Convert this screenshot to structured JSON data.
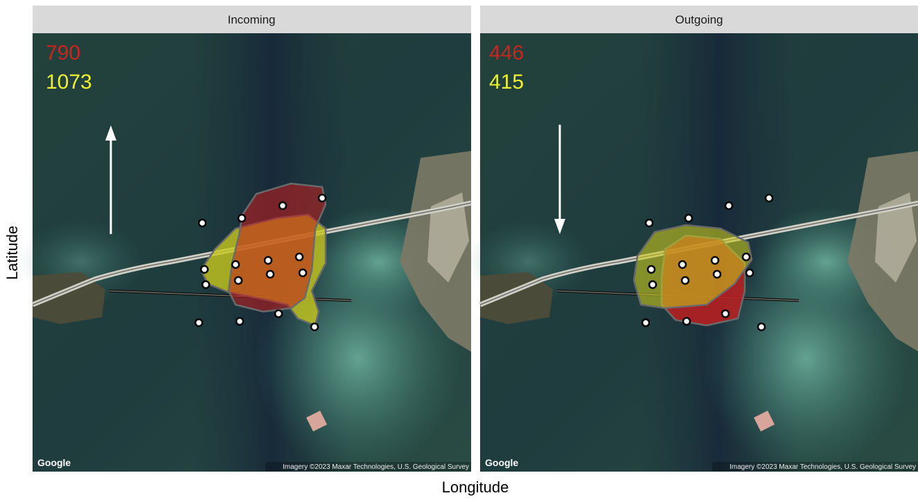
{
  "panels": [
    {
      "strip": "Incoming",
      "red_count": 790,
      "yellow_count": 1073,
      "logo": "Google",
      "attribution": "Imagery ©2023 Maxar Technologies, U.S. Geological Survey"
    },
    {
      "strip": "Outgoing",
      "red_count": 446,
      "yellow_count": 415,
      "logo": "Google",
      "attribution": "Imagery ©2023 Maxar Technologies, U.S. Geological Survey"
    }
  ],
  "y_axis_label": "Latitude",
  "x_axis_label": "Longitude"
}
